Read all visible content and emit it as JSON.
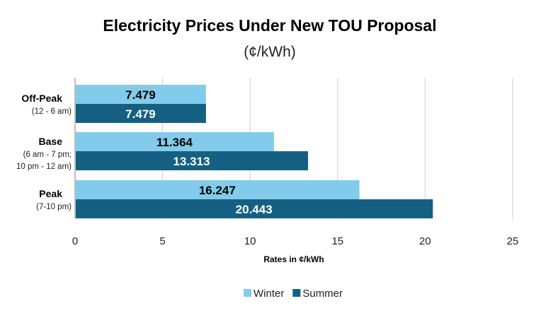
{
  "chart_data": {
    "type": "bar",
    "orientation": "horizontal",
    "title": "Electricity Prices Under New TOU Proposal",
    "subtitle": "(¢/kWh)",
    "xlabel": "Rates in ¢/kWh",
    "ylabel": "",
    "xlim": [
      0,
      25
    ],
    "xticks": [
      0,
      5,
      10,
      15,
      20,
      25
    ],
    "grid": true,
    "legend_position": "bottom",
    "categories": [
      {
        "name": "Off-Peak",
        "sub": [
          "(12 - 6 am)"
        ]
      },
      {
        "name": "Base",
        "sub": [
          "(6 am - 7 pm;",
          "10 pm - 12 am)"
        ]
      },
      {
        "name": "Peak",
        "sub": [
          "(7-10 pm)"
        ]
      }
    ],
    "series": [
      {
        "name": "Winter",
        "color": "#83cbeb",
        "label_color": "#000000",
        "values": [
          7.479,
          11.364,
          16.247
        ]
      },
      {
        "name": "Summer",
        "color": "#156082",
        "label_color": "#ffffff",
        "values": [
          7.479,
          13.313,
          20.443
        ]
      }
    ]
  }
}
